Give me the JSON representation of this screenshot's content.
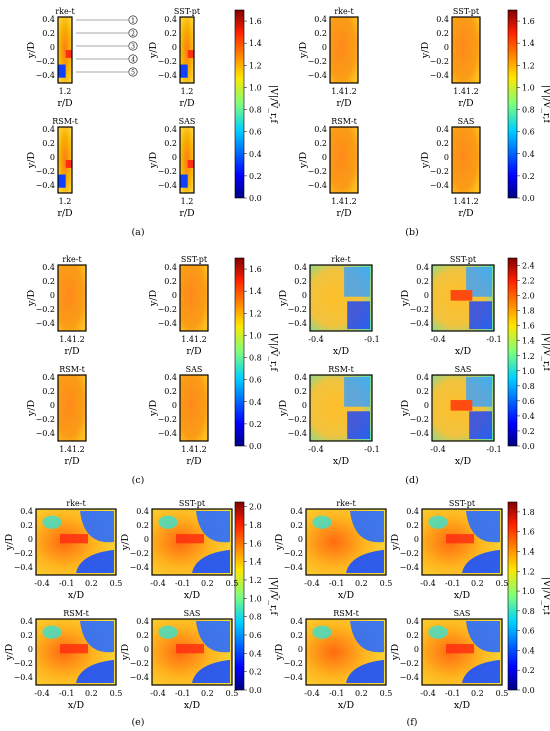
{
  "panels": [
    {
      "id": "a",
      "caption": "(a)",
      "subplots": [
        {
          "title": "rke-t",
          "xticks": [
            "1.2"
          ],
          "xlabel": "r/D",
          "ylabel": "y/D",
          "yticks": [
            "0.4",
            "0.2",
            "0",
            "−0.2",
            "−0.4"
          ]
        },
        {
          "title": "SST-pt",
          "xticks": [
            "1.2"
          ],
          "xlabel": "r/D",
          "ylabel": "y/D",
          "yticks": [
            "0.4",
            "0.2",
            "0",
            "−0.2",
            "−0.4"
          ]
        },
        {
          "title": "RSM-t",
          "xticks": [
            "1.2"
          ],
          "xlabel": "r/D",
          "ylabel": "y/D",
          "yticks": [
            "0.4",
            "0.2",
            "0",
            "−0.2",
            "−0.4"
          ]
        },
        {
          "title": "SAS",
          "xticks": [
            "1.2"
          ],
          "xlabel": "r/D",
          "ylabel": "y/D",
          "yticks": [
            "0.4",
            "0.2",
            "0",
            "−0.2",
            "−0.4"
          ]
        }
      ],
      "probe_labels": [
        "1",
        "2",
        "3",
        "4",
        "5"
      ],
      "colorbar": {
        "label": "|V|/V̄_r,f",
        "ticks": [
          "1.6",
          "1.4",
          "1.2",
          "1.0",
          "0.8",
          "0.6",
          "0.4",
          "0.2",
          "0.0"
        ],
        "max": 1.7
      }
    },
    {
      "id": "b",
      "caption": "(b)",
      "subplots": [
        {
          "title": "rke-t",
          "xticks": [
            "1.41.2"
          ],
          "xlabel": "r/D",
          "ylabel": "y/D",
          "yticks": [
            "0.4",
            "0.2",
            "0",
            "−0.2",
            "−0.4"
          ]
        },
        {
          "title": "SST-pt",
          "xticks": [
            "1.41.2"
          ],
          "xlabel": "r/D",
          "ylabel": "y/D",
          "yticks": [
            "0.4",
            "0.2",
            "0",
            "−0.2",
            "−0.4"
          ]
        },
        {
          "title": "RSM-t",
          "xticks": [
            "1.41.2"
          ],
          "xlabel": "r/D",
          "ylabel": "y/D",
          "yticks": [
            "0.4",
            "0.2",
            "0",
            "−0.2",
            "−0.4"
          ]
        },
        {
          "title": "SAS",
          "xticks": [
            "1.41.2"
          ],
          "xlabel": "r/D",
          "ylabel": "y/D",
          "yticks": [
            "0.4",
            "0.2",
            "0",
            "−0.2",
            "−0.4"
          ]
        }
      ],
      "colorbar": {
        "label": "|V|/V̄_r,f",
        "ticks": [
          "1.6",
          "1.4",
          "1.2",
          "1.0",
          "0.8",
          "0.6",
          "0.4",
          "0.2",
          "0.0"
        ],
        "max": 1.7
      }
    },
    {
      "id": "c",
      "caption": "(c)",
      "subplots": [
        {
          "title": "rke-t",
          "xticks": [
            "1.41.2"
          ],
          "xlabel": "r/D",
          "ylabel": "y/D",
          "yticks": [
            "0.4",
            "0.2",
            "0",
            "−0.2",
            "−0.4"
          ]
        },
        {
          "title": "SST-pt",
          "xticks": [
            "1.41.2"
          ],
          "xlabel": "r/D",
          "ylabel": "y/D",
          "yticks": [
            "0.4",
            "0.2",
            "0",
            "−0.2",
            "−0.4"
          ]
        },
        {
          "title": "RSM-t",
          "xticks": [
            "1.41.2"
          ],
          "xlabel": "r/D",
          "ylabel": "y/D",
          "yticks": [
            "0.4",
            "0.2",
            "0",
            "−0.2",
            "−0.4"
          ]
        },
        {
          "title": "SAS",
          "xticks": [
            "1.41.2"
          ],
          "xlabel": "r/D",
          "ylabel": "y/D",
          "yticks": [
            "0.4",
            "0.2",
            "0",
            "−0.2",
            "−0.4"
          ]
        }
      ],
      "colorbar": {
        "label": "|V|/V̄_r,f",
        "ticks": [
          "1.6",
          "1.4",
          "1.2",
          "1.0",
          "0.8",
          "0.6",
          "0.4",
          "0.2",
          "0.0"
        ],
        "max": 1.7
      }
    },
    {
      "id": "d",
      "caption": "(d)",
      "subplots": [
        {
          "title": "rke-t",
          "xticks": [
            "-0.4",
            "-0.1"
          ],
          "xlabel": "x/D",
          "ylabel": "y/D",
          "yticks": [
            "0.4",
            "0.2",
            "0",
            "−0.2",
            "−0.4"
          ]
        },
        {
          "title": "SST-pt",
          "xticks": [
            "-0.4",
            "-0.1"
          ],
          "xlabel": "x/D",
          "ylabel": "y/D",
          "yticks": [
            "0.4",
            "0.2",
            "0",
            "−0.2",
            "−0.4"
          ]
        },
        {
          "title": "RSM-t",
          "xticks": [
            "-0.4",
            "-0.1"
          ],
          "xlabel": "x/D",
          "ylabel": "y/D",
          "yticks": [
            "0.4",
            "0.2",
            "0",
            "−0.2",
            "−0.4"
          ]
        },
        {
          "title": "SAS",
          "xticks": [
            "-0.4",
            "-0.1"
          ],
          "xlabel": "x/D",
          "ylabel": "y/D",
          "yticks": [
            "0.4",
            "0.2",
            "0",
            "−0.2",
            "−0.4"
          ]
        }
      ],
      "colorbar": {
        "label": "|V|/V̄_r,f",
        "ticks": [
          "2.4",
          "2.2",
          "2.0",
          "1.8",
          "1.6",
          "1.4",
          "1.2",
          "1.0",
          "0.8",
          "0.6",
          "0.4",
          "0.2",
          "0.0"
        ],
        "max": 2.5
      }
    },
    {
      "id": "e",
      "caption": "(e)",
      "subplots": [
        {
          "title": "rke-t",
          "xticks": [
            "-0.4",
            "-0.1",
            "0.2",
            "0.5"
          ],
          "xlabel": "x/D",
          "ylabel": "y/D",
          "yticks": [
            "0.4",
            "0.2",
            "0",
            "−0.2",
            "−0.4"
          ]
        },
        {
          "title": "SST-pt",
          "xticks": [
            "-0.4",
            "-0.1",
            "0.2",
            "0.5"
          ],
          "xlabel": "x/D",
          "ylabel": "y/D",
          "yticks": [
            "0.4",
            "0.2",
            "0",
            "−0.2",
            "−0.4"
          ]
        },
        {
          "title": "RSM-t",
          "xticks": [
            "-0.4",
            "-0.1",
            "0.2",
            "0.5"
          ],
          "xlabel": "x/D",
          "ylabel": "y/D",
          "yticks": [
            "0.4",
            "0.2",
            "0",
            "−0.2",
            "−0.4"
          ]
        },
        {
          "title": "SAS",
          "xticks": [
            "-0.4",
            "-0.1",
            "0.2",
            "0.5"
          ],
          "xlabel": "x/D",
          "ylabel": "y/D",
          "yticks": [
            "0.4",
            "0.2",
            "0",
            "−0.2",
            "−0.4"
          ]
        }
      ],
      "colorbar": {
        "label": "|V|/V̄_r,f",
        "ticks": [
          "2.0",
          "1.8",
          "1.6",
          "1.4",
          "1.2",
          "1.0",
          "0.8",
          "0.6",
          "0.4",
          "0.2",
          "0.0"
        ],
        "max": 2.05
      }
    },
    {
      "id": "f",
      "caption": "(f)",
      "subplots": [
        {
          "title": "rke-t",
          "xticks": [
            "-0.4",
            "-0.1",
            "0.2",
            "0.5"
          ],
          "xlabel": "x/D",
          "ylabel": "y/D",
          "yticks": [
            "0.4",
            "0.2",
            "0",
            "−0.2",
            "−0.4"
          ]
        },
        {
          "title": "SST-pt",
          "xticks": [
            "-0.4",
            "-0.1",
            "0.2",
            "0.5"
          ],
          "xlabel": "x/D",
          "ylabel": "y/D",
          "yticks": [
            "0.4",
            "0.2",
            "0",
            "−0.2",
            "−0.4"
          ]
        },
        {
          "title": "RSM-t",
          "xticks": [
            "-0.4",
            "-0.1",
            "0.2",
            "0.5"
          ],
          "xlabel": "x/D",
          "ylabel": "y/D",
          "yticks": [
            "0.4",
            "0.2",
            "0",
            "−0.2",
            "−0.4"
          ]
        },
        {
          "title": "SAS",
          "xticks": [
            "-0.4",
            "-0.1",
            "0.2",
            "0.5"
          ],
          "xlabel": "x/D",
          "ylabel": "y/D",
          "yticks": [
            "0.4",
            "0.2",
            "0",
            "−0.2",
            "−0.4"
          ]
        }
      ],
      "colorbar": {
        "label": "|V|/V̄_r,f",
        "ticks": [
          "1.8",
          "1.6",
          "1.4",
          "1.2",
          "1.0",
          "0.8",
          "0.6",
          "0.4",
          "0.2",
          "0.0"
        ],
        "max": 1.9
      }
    }
  ]
}
